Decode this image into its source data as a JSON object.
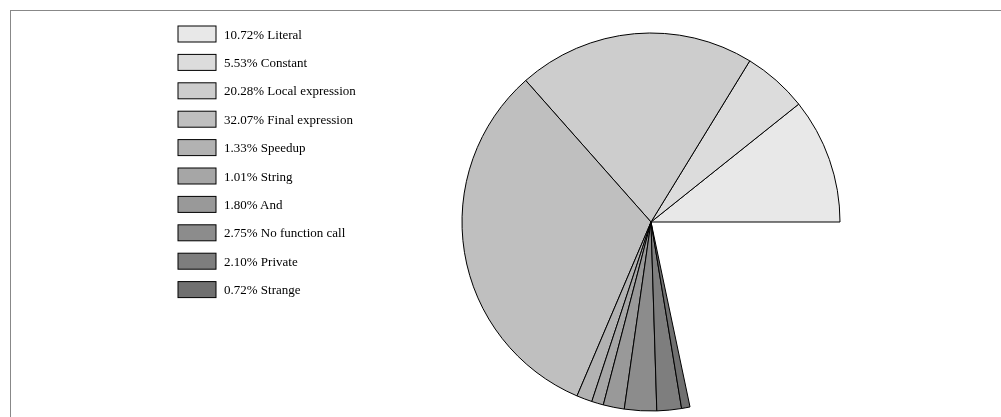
{
  "chart_data": {
    "type": "pie",
    "categories": [
      "Literal",
      "Constant",
      "Local expression",
      "Final expression",
      "Speedup",
      "String",
      "And",
      "No function call",
      "Private",
      "Strange"
    ],
    "values": [
      10.72,
      5.53,
      20.28,
      32.07,
      1.33,
      1.01,
      1.8,
      2.75,
      2.1,
      0.72
    ],
    "value_labels": [
      "10.72%",
      "5.53%",
      "20.28%",
      "32.07%",
      "1.33%",
      "1.01%",
      "1.80%",
      "2.75%",
      "2.10%",
      "0.72%"
    ],
    "colors": [
      "#e8e8e8",
      "#dcdcdc",
      "#cdcdcd",
      "#bfbfbf",
      "#b2b2b2",
      "#a6a6a6",
      "#999999",
      "#8c8c8c",
      "#7e7e7e",
      "#707070"
    ],
    "legend": "left"
  }
}
